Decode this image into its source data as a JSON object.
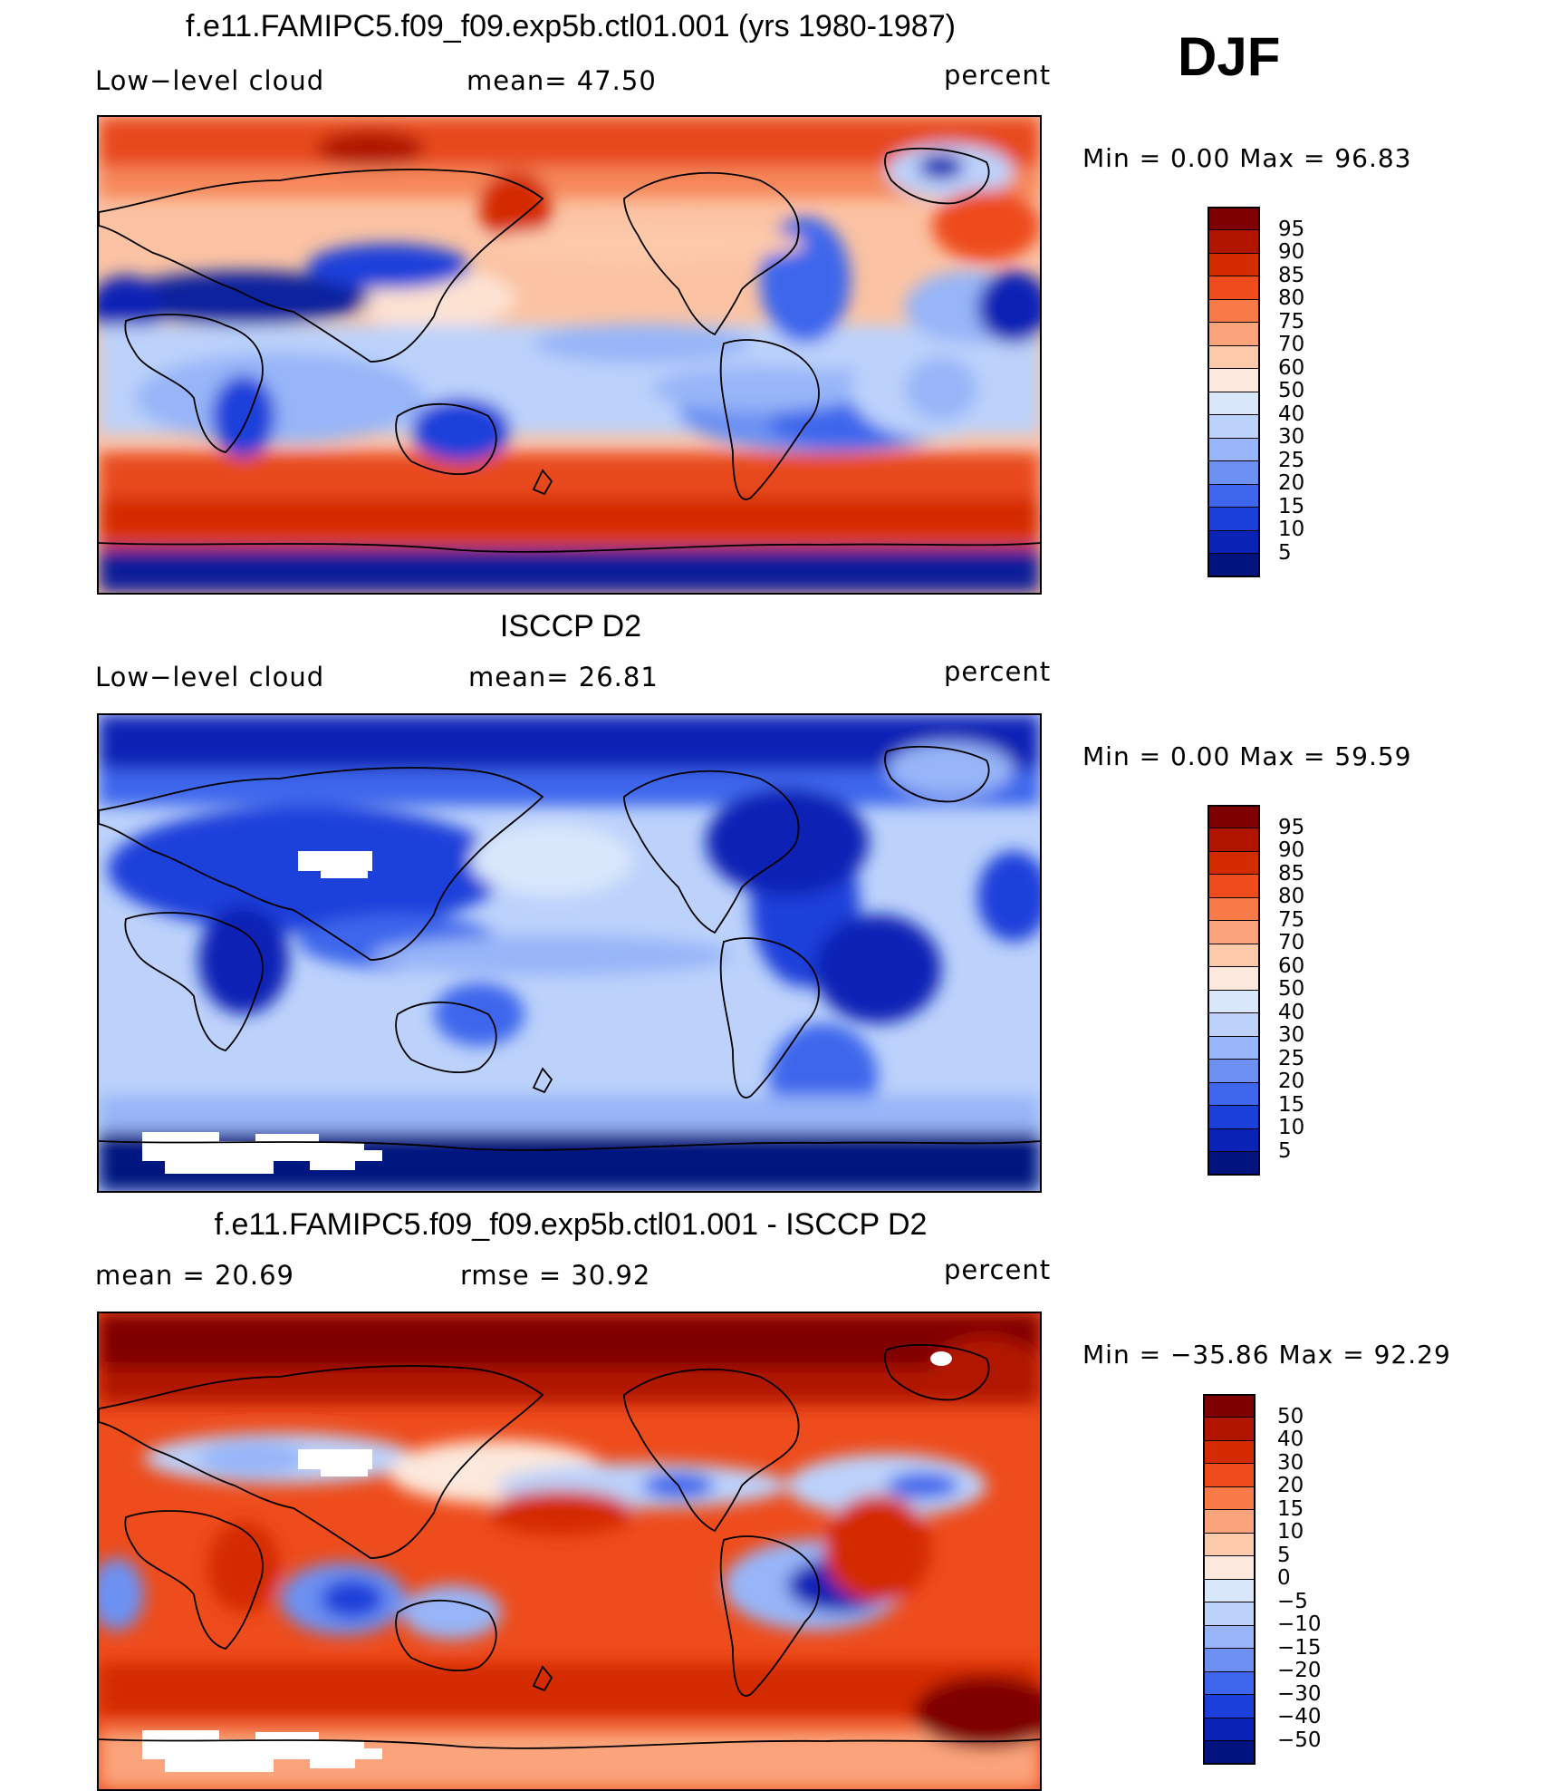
{
  "season": "DJF",
  "panels": [
    {
      "title": "f.e11.FAMIPC5.f09_f09.exp5b.ctl01.001 (yrs 1980-1987)",
      "left_label": "Low−level cloud",
      "center_label": "mean=   47.50",
      "units": "percent",
      "minmax": "Min  =      0.00  Max  =    96.83",
      "legend": [
        "95",
        "90",
        "85",
        "80",
        "75",
        "70",
        "60",
        "50",
        "40",
        "30",
        "25",
        "20",
        "15",
        "10",
        "5"
      ],
      "field": "model"
    },
    {
      "title": "ISCCP D2",
      "left_label": "Low−level cloud",
      "center_label": "mean=   26.81",
      "units": "percent",
      "minmax": "Min  =      0.00  Max  =    59.59",
      "legend": [
        "95",
        "90",
        "85",
        "80",
        "75",
        "70",
        "60",
        "50",
        "40",
        "30",
        "25",
        "20",
        "15",
        "10",
        "5"
      ],
      "field": "obs"
    },
    {
      "title": "f.e11.FAMIPC5.f09_f09.exp5b.ctl01.001 - ISCCP D2",
      "left_label": "mean  =    20.69",
      "center_label": "rmse  =    30.92",
      "units": "percent",
      "minmax": "Min  = −35.86  Max  =    92.29",
      "legend": [
        "50",
        "40",
        "30",
        "20",
        "15",
        "10",
        "5",
        "0",
        "−5",
        "−10",
        "−15",
        "−20",
        "−30",
        "−40",
        "−50"
      ],
      "field": "diff"
    }
  ],
  "colors": {
    "level_scale": [
      "#7f0000",
      "#b11500",
      "#d42a00",
      "#ee4c1c",
      "#f77a48",
      "#fba47c",
      "#fdc9ab",
      "#fce8dc",
      "#d9e7fb",
      "#bcd2fb",
      "#97b5f8",
      "#6c91f3",
      "#3e66ec",
      "#1b3fda",
      "#0a22b5",
      "#00137f"
    ]
  }
}
